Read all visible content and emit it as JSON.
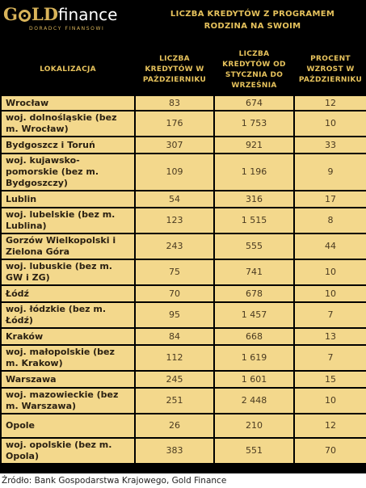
{
  "brand": {
    "name_gold": "G",
    "name_gold_rest": "LD",
    "name_finance": "finance",
    "tagline": "DORADCY FINANSOWI"
  },
  "title_line1": "LICZBA KREDYTÓW Z PROGRAMEM",
  "title_line2": "RODZINA NA SWOIM",
  "table": {
    "columns": [
      {
        "line1": "LOKALIZACJA"
      },
      {
        "line1": "LICZBA",
        "line2": "KREDYTÓW W",
        "line3": "PAŹDZIERNIKU"
      },
      {
        "line1": "LICZBA",
        "line2": "KREDYTÓW OD",
        "line3": "STYCZNIA DO",
        "line4": "WRZEŚNIA"
      },
      {
        "line1": "PROCENT",
        "line2": "WZROST W",
        "line3": "PAŹDZIERNIKU"
      }
    ],
    "rows": [
      {
        "loc1": "Wrocław",
        "loc2": "",
        "loc3": "",
        "oct": "83",
        "jan_sep": "674",
        "pct": "12"
      },
      {
        "loc1": "woj. dolnośląskie (bez",
        "loc2": "m. Wrocław)",
        "loc3": "",
        "oct": "176",
        "jan_sep": "1 753",
        "pct": "10"
      },
      {
        "loc1": "Bydgoszcz i Toruń",
        "loc2": "",
        "loc3": "",
        "oct": "307",
        "jan_sep": "921",
        "pct": "33"
      },
      {
        "loc1": "woj. kujawsko-",
        "loc2": "pomorskie (bez m.",
        "loc3": "Bydgoszczy)",
        "oct": "109",
        "jan_sep": "1 196",
        "pct": "9"
      },
      {
        "loc1": "Lublin",
        "loc2": "",
        "loc3": "",
        "oct": "54",
        "jan_sep": "316",
        "pct": "17"
      },
      {
        "loc1": "woj. lubelskie (bez m.",
        "loc2": "Lublina)",
        "loc3": "",
        "oct": "123",
        "jan_sep": "1 515",
        "pct": "8"
      },
      {
        "loc1": "Gorzów Wielkopolski i",
        "loc2": "Zielona Góra",
        "loc3": "",
        "oct": "243",
        "jan_sep": "555",
        "pct": "44"
      },
      {
        "loc1": "woj. lubuskie (bez m.",
        "loc2": "GW i ZG)",
        "loc3": "",
        "oct": "75",
        "jan_sep": "741",
        "pct": "10"
      },
      {
        "loc1": "Łódź",
        "loc2": "",
        "loc3": "",
        "oct": "70",
        "jan_sep": "678",
        "pct": "10"
      },
      {
        "loc1": "woj. łódzkie (bez m.",
        "loc2": "Łódź)",
        "loc3": "",
        "oct": "95",
        "jan_sep": "1 457",
        "pct": "7"
      },
      {
        "loc1": "Kraków",
        "loc2": "",
        "loc3": "",
        "oct": "84",
        "jan_sep": "668",
        "pct": "13"
      },
      {
        "loc1": "woj. małopolskie (bez",
        "loc2": "m. Krakow)",
        "loc3": "",
        "oct": "112",
        "jan_sep": "1 619",
        "pct": "7"
      },
      {
        "loc1": "Warszawa",
        "loc2": "",
        "loc3": "",
        "oct": "245",
        "jan_sep": "1 601",
        "pct": "15"
      },
      {
        "loc1": "woj. mazowieckie (bez",
        "loc2": "m. Warszawa)",
        "loc3": "",
        "oct": "251",
        "jan_sep": "2 448",
        "pct": "10"
      },
      {
        "loc1": "Opole",
        "loc2": "",
        "loc3": "",
        "oct": "26",
        "jan_sep": "210",
        "pct": "12"
      },
      {
        "loc1": "woj. opolskie (bez m.",
        "loc2": "Opola)",
        "loc3": "",
        "oct": "383",
        "jan_sep": "551",
        "pct": "70"
      }
    ]
  },
  "source": "Źródło: Bank Gospodarstwa Krajowego, Gold Finance",
  "colors": {
    "background": "#000000",
    "header_text": "#e6c25c",
    "cell_fill": "#f3d88c"
  }
}
